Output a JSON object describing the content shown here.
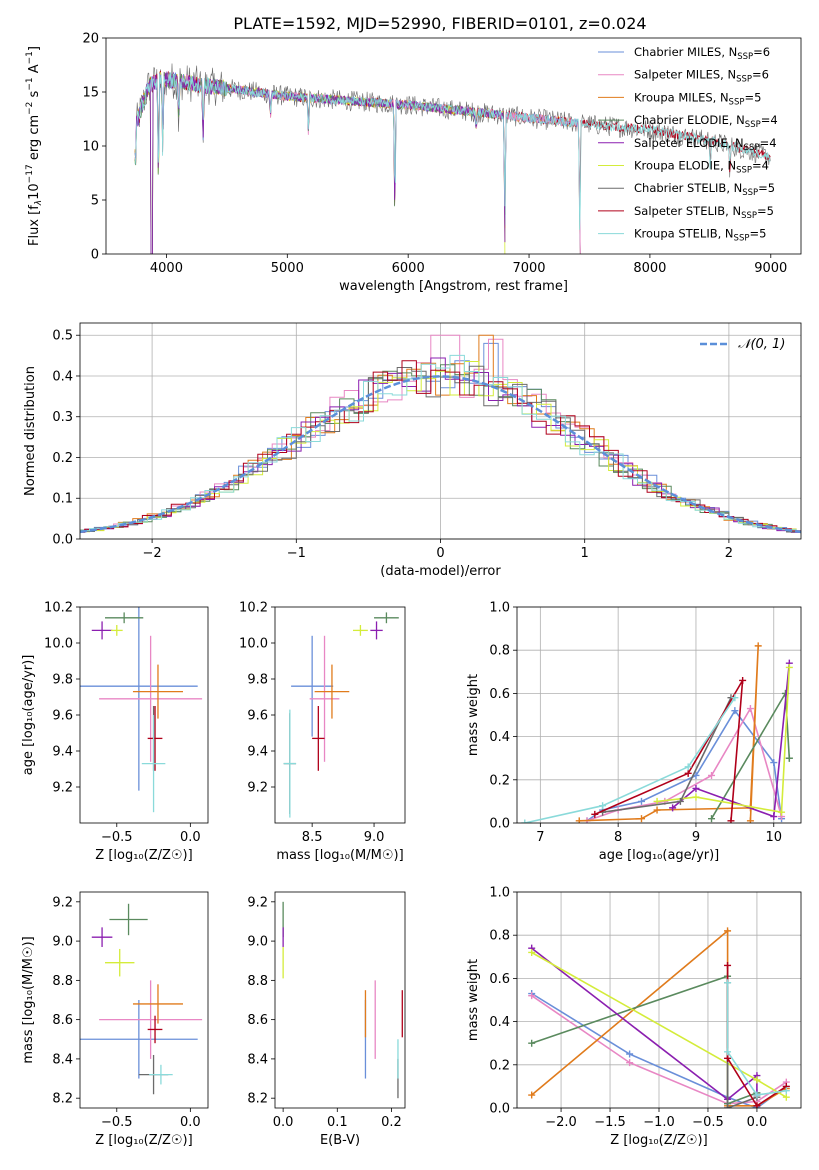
{
  "figure_title": "PLATE=1592, MJD=52990, FIBERID=0101, z=0.024",
  "colors": {
    "Chabrier MILES": "#6a8fd9",
    "Salpeter MILES": "#e887c4",
    "Kroupa MILES": "#e07b1c",
    "Chabrier ELODIE": "#5a8a5e",
    "Salpeter ELODIE": "#8b1fb0",
    "Kroupa ELODIE": "#d4ec3a",
    "Chabrier STELIB": "#6b6b6b",
    "Salpeter STELIB": "#b0001a",
    "Kroupa STELIB": "#8adada",
    "gaussian": "#5b8fd9"
  },
  "chart_data": [
    {
      "id": "spectrum",
      "type": "line",
      "title": "PLATE=1592, MJD=52990, FIBERID=0101, z=0.024",
      "xlabel": "wavelength [Angstrom, rest frame]",
      "ylabel_parts": [
        "Flux [f",
        "λ",
        "10",
        "−17",
        " erg cm",
        "−2",
        " s",
        "−1",
        " A",
        "−1",
        "]"
      ],
      "xlim": [
        3500,
        9250
      ],
      "ylim": [
        0,
        20
      ],
      "xticks": [
        4000,
        5000,
        6000,
        7000,
        8000,
        9000
      ],
      "yticks": [
        0,
        5,
        10,
        15,
        20
      ],
      "legend_position": "top-right",
      "legend": [
        {
          "name": "Chabrier MILES",
          "label": "Chabrier MILES, N",
          "sub": "SSP",
          "suffix": "=6"
        },
        {
          "name": "Salpeter MILES",
          "label": "Salpeter MILES, N",
          "sub": "SSP",
          "suffix": "=6"
        },
        {
          "name": "Kroupa MILES",
          "label": "Kroupa MILES, N",
          "sub": "SSP",
          "suffix": "=5"
        },
        {
          "name": "Chabrier ELODIE",
          "label": "Chabrier ELODIE, N",
          "sub": "SSP",
          "suffix": "=4"
        },
        {
          "name": "Salpeter ELODIE",
          "label": "Salpeter ELODIE, N",
          "sub": "SSP",
          "suffix": "=4"
        },
        {
          "name": "Kroupa ELODIE",
          "label": "Kroupa ELODIE, N",
          "sub": "SSP",
          "suffix": "=4"
        },
        {
          "name": "Chabrier STELIB",
          "label": "Chabrier STELIB, N",
          "sub": "SSP",
          "suffix": "=5"
        },
        {
          "name": "Salpeter STELIB",
          "label": "Salpeter STELIB, N",
          "sub": "SSP",
          "suffix": "=5"
        },
        {
          "name": "Kroupa STELIB",
          "label": "Kroupa STELIB, N",
          "sub": "SSP",
          "suffix": "=5"
        }
      ],
      "continuum": {
        "x": [
          3750,
          3850,
          3950,
          4100,
          4300,
          4600,
          5000,
          5500,
          6000,
          6500,
          7000,
          7500,
          8000,
          8500,
          9000
        ],
        "y": [
          12.0,
          15.5,
          16.2,
          16.0,
          15.6,
          15.2,
          14.6,
          14.2,
          13.8,
          13.2,
          12.6,
          12.0,
          11.5,
          10.5,
          9.0
        ]
      },
      "absorption_features": [
        {
          "x": 3934,
          "depth": 12.0
        },
        {
          "x": 3969,
          "depth": 8.0
        },
        {
          "x": 4102,
          "depth": 5.0
        },
        {
          "x": 4304,
          "depth": 5.5
        },
        {
          "x": 4861,
          "depth": 3.0
        },
        {
          "x": 5175,
          "depth": 3.5
        },
        {
          "x": 5890,
          "depth": 12.0
        },
        {
          "x": 6563,
          "depth": 2.0
        },
        {
          "x": 6800,
          "depth": 12.0
        },
        {
          "x": 7420,
          "depth": 12.0
        },
        {
          "x": 8500,
          "depth": 3.0
        },
        {
          "x": 8662,
          "depth": 3.0
        }
      ]
    },
    {
      "id": "residuals",
      "type": "line",
      "xlabel": "(data-model)/error",
      "ylabel": "Normed distribution",
      "xlim": [
        -2.5,
        2.5
      ],
      "ylim": [
        0,
        0.53
      ],
      "xticks": [
        -2,
        -1,
        0,
        1,
        2
      ],
      "yticks": [
        0.0,
        0.1,
        0.2,
        0.3,
        0.4,
        0.5
      ],
      "grid": true,
      "legend_position": "top-right",
      "legend": [
        {
          "name": "gaussian",
          "label": "𝒩(0, 1)"
        }
      ],
      "gaussian": {
        "mean": 0,
        "sigma": 1
      }
    },
    {
      "id": "age_vs_Z",
      "type": "scatter",
      "xlabel": "Z [log₁₀(Z/Z☉)]",
      "ylabel": "age  [log₁₀(age/yr)]",
      "xlim": [
        -0.75,
        0.12
      ],
      "ylim": [
        9.0,
        10.2
      ],
      "xticks": [
        -0.5,
        0.0
      ],
      "yticks": [
        9.2,
        9.4,
        9.6,
        9.8,
        10.0,
        10.2
      ],
      "series": [
        {
          "name": "Chabrier MILES",
          "x": -0.35,
          "y": 9.76,
          "xerr": 0.4,
          "yerr": 0.58
        },
        {
          "name": "Salpeter MILES",
          "x": -0.27,
          "y": 9.69,
          "xerr": 0.35,
          "yerr": 0.35
        },
        {
          "name": "Kroupa MILES",
          "x": -0.22,
          "y": 9.73,
          "xerr": 0.17,
          "yerr": 0.15
        },
        {
          "name": "Chabrier ELODIE",
          "x": -0.45,
          "y": 10.14,
          "xerr": 0.13,
          "yerr": 0.03
        },
        {
          "name": "Salpeter ELODIE",
          "x": -0.6,
          "y": 10.07,
          "xerr": 0.07,
          "yerr": 0.05
        },
        {
          "name": "Kroupa ELODIE",
          "x": -0.5,
          "y": 10.07,
          "xerr": 0.04,
          "yerr": 0.03
        },
        {
          "name": "Chabrier STELIB",
          "x": -0.25,
          "y": 9.47,
          "xerr": 0.01,
          "yerr": 0.18
        },
        {
          "name": "Salpeter STELIB",
          "x": -0.24,
          "y": 9.47,
          "xerr": 0.05,
          "yerr": 0.18
        },
        {
          "name": "Kroupa STELIB",
          "x": -0.25,
          "y": 9.33,
          "xerr": 0.08,
          "yerr": 0.27
        }
      ]
    },
    {
      "id": "age_vs_mass",
      "type": "scatter",
      "xlabel": "mass [log₁₀(M/M☉)]",
      "ylim": [
        9.0,
        10.2
      ],
      "xlim": [
        8.2,
        9.25
      ],
      "xticks": [
        8.5,
        9.0
      ],
      "yticks": [
        9.2,
        9.4,
        9.6,
        9.8,
        10.0,
        10.2
      ],
      "series": [
        {
          "name": "Chabrier MILES",
          "x": 8.5,
          "y": 9.76,
          "xerr": 0.17,
          "yerr": 0.28
        },
        {
          "name": "Salpeter MILES",
          "x": 8.6,
          "y": 9.69,
          "xerr": 0.12,
          "yerr": 0.35
        },
        {
          "name": "Kroupa MILES",
          "x": 8.66,
          "y": 9.73,
          "xerr": 0.14,
          "yerr": 0.15
        },
        {
          "name": "Chabrier ELODIE",
          "x": 9.1,
          "y": 10.14,
          "xerr": 0.1,
          "yerr": 0.03
        },
        {
          "name": "Salpeter ELODIE",
          "x": 9.02,
          "y": 10.07,
          "xerr": 0.05,
          "yerr": 0.05
        },
        {
          "name": "Kroupa ELODIE",
          "x": 8.89,
          "y": 10.07,
          "xerr": 0.06,
          "yerr": 0.03
        },
        {
          "name": "Chabrier STELIB",
          "x": 8.32,
          "y": 9.33,
          "xerr": 0.05,
          "yerr": 0.28
        },
        {
          "name": "Salpeter STELIB",
          "x": 8.55,
          "y": 9.47,
          "xerr": 0.05,
          "yerr": 0.18
        },
        {
          "name": "Kroupa STELIB",
          "x": 8.32,
          "y": 9.33,
          "xerr": 0.05,
          "yerr": 0.3
        }
      ]
    },
    {
      "id": "weight_vs_age",
      "type": "line",
      "xlabel": "age  [log₁₀(age/yr)]",
      "ylabel": "mass weight",
      "xlim": [
        6.7,
        10.35
      ],
      "ylim": [
        0.0,
        1.0
      ],
      "xticks": [
        7,
        8,
        9,
        10
      ],
      "yticks": [
        0.0,
        0.2,
        0.4,
        0.6,
        0.8,
        1.0
      ],
      "grid": true,
      "series": [
        {
          "name": "Chabrier MILES",
          "x": [
            7.6,
            7.8,
            8.3,
            9.0,
            9.5,
            10.0,
            10.1
          ],
          "y": [
            0.01,
            0.06,
            0.1,
            0.22,
            0.52,
            0.28,
            0.02
          ]
        },
        {
          "name": "Salpeter MILES",
          "x": [
            7.6,
            8.0,
            8.6,
            9.2,
            9.7,
            10.1
          ],
          "y": [
            0.01,
            0.06,
            0.1,
            0.22,
            0.53,
            0.03
          ]
        },
        {
          "name": "Kroupa MILES",
          "x": [
            7.5,
            8.3,
            8.5,
            9.7,
            9.8,
            9.7
          ],
          "y": [
            0.01,
            0.02,
            0.06,
            0.07,
            0.82,
            0.01
          ]
        },
        {
          "name": "Chabrier ELODIE",
          "x": [
            9.2,
            10.15,
            10.2,
            10.2
          ],
          "y": [
            0.02,
            0.6,
            0.3,
            0.3
          ]
        },
        {
          "name": "Salpeter ELODIE",
          "x": [
            8.7,
            9.0,
            10.0,
            10.2
          ],
          "y": [
            0.07,
            0.16,
            0.03,
            0.74
          ]
        },
        {
          "name": "Kroupa ELODIE",
          "x": [
            8.5,
            9.0,
            10.1,
            10.2
          ],
          "y": [
            0.1,
            0.12,
            0.05,
            0.72
          ]
        },
        {
          "name": "Chabrier STELIB",
          "x": [
            7.8,
            8.8,
            9.45
          ],
          "y": [
            0.05,
            0.1,
            0.58
          ]
        },
        {
          "name": "Salpeter STELIB",
          "x": [
            7.7,
            8.9,
            9.6,
            9.45
          ],
          "y": [
            0.04,
            0.23,
            0.66,
            0.01
          ]
        },
        {
          "name": "Kroupa STELIB",
          "x": [
            6.8,
            7.8,
            8.9,
            9.5
          ],
          "y": [
            0.0,
            0.08,
            0.26,
            0.58
          ]
        }
      ]
    },
    {
      "id": "mass_vs_Z",
      "type": "scatter",
      "xlabel": "Z [log₁₀(Z/Z☉)]",
      "ylabel": "mass [log₁₀(M/M☉)]",
      "xlim": [
        -0.75,
        0.12
      ],
      "ylim": [
        8.15,
        9.25
      ],
      "xticks": [
        -0.5,
        0.0
      ],
      "yticks": [
        8.2,
        8.4,
        8.6,
        8.8,
        9.0,
        9.2
      ],
      "series": [
        {
          "name": "Chabrier MILES",
          "x": -0.35,
          "y": 8.5,
          "xerr": 0.4,
          "yerr": 0.2
        },
        {
          "name": "Salpeter MILES",
          "x": -0.27,
          "y": 8.6,
          "xerr": 0.35,
          "yerr": 0.2
        },
        {
          "name": "Kroupa MILES",
          "x": -0.22,
          "y": 8.68,
          "xerr": 0.17,
          "yerr": 0.1
        },
        {
          "name": "Chabrier ELODIE",
          "x": -0.42,
          "y": 9.11,
          "xerr": 0.13,
          "yerr": 0.08
        },
        {
          "name": "Salpeter ELODIE",
          "x": -0.6,
          "y": 9.02,
          "xerr": 0.07,
          "yerr": 0.05
        },
        {
          "name": "Kroupa ELODIE",
          "x": -0.48,
          "y": 8.89,
          "xerr": 0.1,
          "yerr": 0.07
        },
        {
          "name": "Chabrier STELIB",
          "x": -0.25,
          "y": 8.32,
          "xerr": 0.1,
          "yerr": 0.1
        },
        {
          "name": "Salpeter STELIB",
          "x": -0.24,
          "y": 8.55,
          "xerr": 0.05,
          "yerr": 0.07
        },
        {
          "name": "Kroupa STELIB",
          "x": -0.2,
          "y": 8.32,
          "xerr": 0.08,
          "yerr": 0.05
        }
      ]
    },
    {
      "id": "mass_vs_ebv",
      "type": "scatter",
      "xlabel": "E(B-V)",
      "xlim": [
        -0.015,
        0.225
      ],
      "ylim": [
        8.15,
        9.25
      ],
      "xticks": [
        0.0,
        0.1,
        0.2
      ],
      "yticks": [
        8.2,
        8.4,
        8.6,
        8.8,
        9.0,
        9.2
      ],
      "series": [
        {
          "name": "Chabrier MILES",
          "x": 0.152,
          "y": 8.5,
          "yerr": 0.2
        },
        {
          "name": "Salpeter MILES",
          "x": 0.17,
          "y": 8.6,
          "yerr": 0.2
        },
        {
          "name": "Kroupa MILES",
          "x": 0.152,
          "y": 8.63,
          "yerr": 0.12
        },
        {
          "name": "Chabrier ELODIE",
          "x": 0.0,
          "y": 9.11,
          "yerr": 0.09
        },
        {
          "name": "Salpeter ELODIE",
          "x": 0.0,
          "y": 9.02,
          "yerr": 0.05
        },
        {
          "name": "Kroupa ELODIE",
          "x": 0.0,
          "y": 8.89,
          "yerr": 0.08
        },
        {
          "name": "Chabrier STELIB",
          "x": 0.212,
          "y": 8.3,
          "yerr": 0.1
        },
        {
          "name": "Salpeter STELIB",
          "x": 0.22,
          "y": 8.63,
          "yerr": 0.12
        },
        {
          "name": "Kroupa STELIB",
          "x": 0.212,
          "y": 8.4,
          "yerr": 0.1
        }
      ]
    },
    {
      "id": "weight_vs_Z",
      "type": "line",
      "xlabel": "Z [log₁₀(Z/Z☉)]",
      "ylabel": "mass weight",
      "xlim": [
        -2.45,
        0.45
      ],
      "ylim": [
        0.0,
        1.0
      ],
      "xticks": [
        -2.0,
        -1.5,
        -1.0,
        -0.5,
        0.0
      ],
      "yticks": [
        0.0,
        0.2,
        0.4,
        0.6,
        0.8,
        1.0
      ],
      "grid": true,
      "series": [
        {
          "name": "Chabrier MILES",
          "x": [
            -2.3,
            -1.3,
            -0.3,
            0.0,
            0.3
          ],
          "y": [
            0.53,
            0.25,
            0.05,
            0.0,
            0.1
          ]
        },
        {
          "name": "Salpeter MILES",
          "x": [
            -2.3,
            -1.3,
            -0.3,
            0.0,
            0.3
          ],
          "y": [
            0.52,
            0.21,
            0.02,
            0.03,
            0.12
          ]
        },
        {
          "name": "Kroupa MILES",
          "x": [
            -2.3,
            -0.3,
            -0.3,
            0.0,
            0.3
          ],
          "y": [
            0.06,
            0.82,
            0.01,
            0.01,
            0.09
          ]
        },
        {
          "name": "Chabrier ELODIE",
          "x": [
            -2.3,
            -0.3,
            -0.3,
            0.0
          ],
          "y": [
            0.3,
            0.61,
            0.02,
            0.07
          ]
        },
        {
          "name": "Salpeter ELODIE",
          "x": [
            -2.3,
            -0.3,
            0.0,
            0.0
          ],
          "y": [
            0.74,
            0.04,
            0.15,
            0.06
          ]
        },
        {
          "name": "Kroupa ELODIE",
          "x": [
            -2.3,
            0.0,
            0.3
          ],
          "y": [
            0.72,
            0.13,
            0.05
          ]
        },
        {
          "name": "Chabrier STELIB",
          "x": [
            -0.3,
            -0.3,
            0.0
          ],
          "y": [
            0.58,
            0.0,
            0.05
          ]
        },
        {
          "name": "Salpeter STELIB",
          "x": [
            -0.3,
            -0.3,
            0.0,
            0.3
          ],
          "y": [
            0.66,
            0.23,
            0.01,
            0.1
          ]
        },
        {
          "name": "Kroupa STELIB",
          "x": [
            -0.3,
            -0.3,
            0.0,
            0.3
          ],
          "y": [
            0.58,
            0.26,
            0.06,
            0.08
          ]
        }
      ]
    }
  ]
}
